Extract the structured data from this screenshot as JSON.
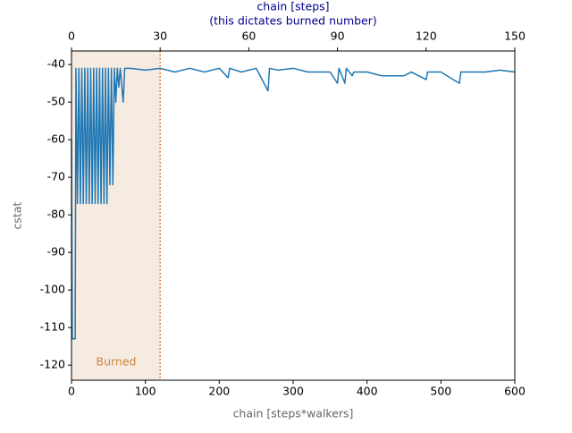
{
  "chart_data": {
    "type": "line",
    "xlabel": "chain [steps*walkers]",
    "ylabel": "cstat",
    "x2label": [
      "chain [steps]",
      "(this dictates burned number)"
    ],
    "annotation": "Burned",
    "burned_until": 120,
    "xlim": [
      0,
      600
    ],
    "xticks": [
      0,
      100,
      200,
      300,
      400,
      500,
      600
    ],
    "x2lim": [
      0,
      150
    ],
    "x2ticks": [
      0,
      30,
      60,
      90,
      120,
      150
    ],
    "ylim": [
      -124,
      -36.4
    ],
    "yticks": [
      -120,
      -110,
      -100,
      -90,
      -80,
      -70,
      -60,
      -50,
      -40
    ],
    "color": "#1f77b4",
    "x": [
      0,
      1,
      5,
      6,
      8,
      10,
      12,
      14,
      16,
      18,
      20,
      22,
      24,
      26,
      28,
      30,
      32,
      34,
      36,
      38,
      40,
      42,
      44,
      46,
      48,
      50,
      52,
      54,
      56,
      58,
      60,
      62,
      64,
      66,
      70,
      72,
      80,
      100,
      120,
      140,
      160,
      180,
      200,
      212,
      214,
      230,
      250,
      266,
      268,
      280,
      300,
      320,
      350,
      360,
      362,
      370,
      372,
      380,
      382,
      400,
      420,
      450,
      460,
      480,
      482,
      500,
      525,
      527,
      540,
      560,
      580,
      600
    ],
    "values": [
      -60,
      -113,
      -113,
      -41,
      -77,
      -41,
      -77,
      -41,
      -77,
      -41,
      -77,
      -41,
      -77,
      -41,
      -77,
      -41,
      -77,
      -41,
      -77,
      -41,
      -77,
      -41,
      -77,
      -41,
      -77,
      -41,
      -72,
      -41,
      -72,
      -41,
      -50,
      -41,
      -46,
      -41,
      -50,
      -41,
      -41,
      -41.5,
      -41,
      -42,
      -41,
      -42,
      -41,
      -43.5,
      -41,
      -42,
      -41,
      -47,
      -41,
      -41.5,
      -41,
      -42,
      -42,
      -45,
      -41,
      -45,
      -41,
      -43,
      -42,
      -42,
      -43,
      -43,
      -42,
      -44,
      -42,
      -42,
      -45,
      -42,
      -42,
      -42,
      -41.5,
      -42
    ]
  }
}
